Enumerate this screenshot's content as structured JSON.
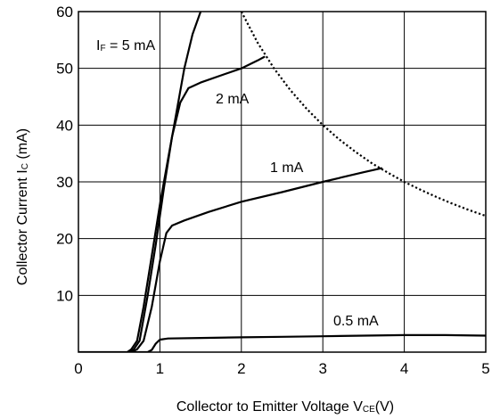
{
  "chart_data": {
    "type": "line",
    "title": "",
    "xlabel": "Collector to Emitter Voltage",
    "xlabel_symbol": "V",
    "xlabel_subscript": "CE",
    "xlabel_unit": "(V)",
    "ylabel": "Collector Current",
    "ylabel_symbol": "I",
    "ylabel_subscript": "C",
    "ylabel_unit": "(mA)",
    "xlim": [
      0,
      5
    ],
    "ylim": [
      0,
      60
    ],
    "x_ticks": [
      0,
      1,
      2,
      3,
      4,
      5
    ],
    "y_ticks": [
      10,
      20,
      30,
      40,
      50,
      60
    ],
    "grid": true,
    "series": [
      {
        "name": "IF = 5 mA",
        "label_prefix": "I",
        "label_subscript": "F",
        "label_rest": " = 5 mA",
        "style": "solid",
        "points": [
          [
            0.6,
            0
          ],
          [
            0.65,
            0.5
          ],
          [
            0.72,
            2
          ],
          [
            0.8,
            8
          ],
          [
            0.9,
            17
          ],
          [
            1.0,
            26
          ],
          [
            1.1,
            34
          ],
          [
            1.2,
            42
          ],
          [
            1.3,
            50
          ],
          [
            1.4,
            56
          ],
          [
            1.5,
            60
          ]
        ]
      },
      {
        "name": "2 mA",
        "label_prefix": "",
        "label_subscript": "",
        "label_rest": "2 mA",
        "style": "solid",
        "points": [
          [
            0.62,
            0
          ],
          [
            0.68,
            0.5
          ],
          [
            0.75,
            2
          ],
          [
            0.85,
            10
          ],
          [
            0.95,
            19
          ],
          [
            1.05,
            29
          ],
          [
            1.15,
            38
          ],
          [
            1.25,
            44
          ],
          [
            1.35,
            46.5
          ],
          [
            1.5,
            47.5
          ],
          [
            1.8,
            49
          ],
          [
            2.0,
            50
          ],
          [
            2.2,
            51.4
          ],
          [
            2.28,
            52
          ]
        ]
      },
      {
        "name": "1 mA",
        "label_prefix": "",
        "label_subscript": "",
        "label_rest": "1 mA",
        "style": "solid",
        "points": [
          [
            0.65,
            0
          ],
          [
            0.72,
            0.5
          ],
          [
            0.8,
            2
          ],
          [
            0.9,
            8
          ],
          [
            1.0,
            16
          ],
          [
            1.08,
            21
          ],
          [
            1.15,
            22.3
          ],
          [
            1.3,
            23.2
          ],
          [
            1.6,
            24.7
          ],
          [
            2.0,
            26.5
          ],
          [
            2.5,
            28.2
          ],
          [
            3.0,
            30
          ],
          [
            3.5,
            31.7
          ],
          [
            3.72,
            32.4
          ]
        ]
      },
      {
        "name": "0.5 mA",
        "label_prefix": "",
        "label_subscript": "",
        "label_rest": "0.5 mA",
        "style": "solid",
        "points": [
          [
            0,
            0
          ],
          [
            0.85,
            0
          ],
          [
            0.9,
            0.4
          ],
          [
            0.95,
            1.5
          ],
          [
            1.0,
            2.2
          ],
          [
            1.1,
            2.4
          ],
          [
            1.5,
            2.5
          ],
          [
            2.0,
            2.6
          ],
          [
            2.5,
            2.7
          ],
          [
            3.0,
            2.8
          ],
          [
            3.5,
            2.9
          ],
          [
            4.0,
            3.0
          ],
          [
            4.5,
            3.0
          ],
          [
            5.0,
            2.9
          ]
        ]
      },
      {
        "name": "",
        "style": "dotted",
        "points": [
          [
            2.0,
            60
          ],
          [
            2.2,
            54.5
          ],
          [
            2.4,
            50
          ],
          [
            2.6,
            46.2
          ],
          [
            2.8,
            42.9
          ],
          [
            3.0,
            40
          ],
          [
            3.2,
            37.5
          ],
          [
            3.4,
            35.3
          ],
          [
            3.6,
            33.3
          ],
          [
            3.8,
            31.6
          ],
          [
            4.0,
            30
          ],
          [
            4.2,
            28.6
          ],
          [
            4.4,
            27.3
          ],
          [
            4.6,
            26.1
          ],
          [
            4.8,
            25
          ],
          [
            5.0,
            24
          ]
        ]
      }
    ]
  }
}
